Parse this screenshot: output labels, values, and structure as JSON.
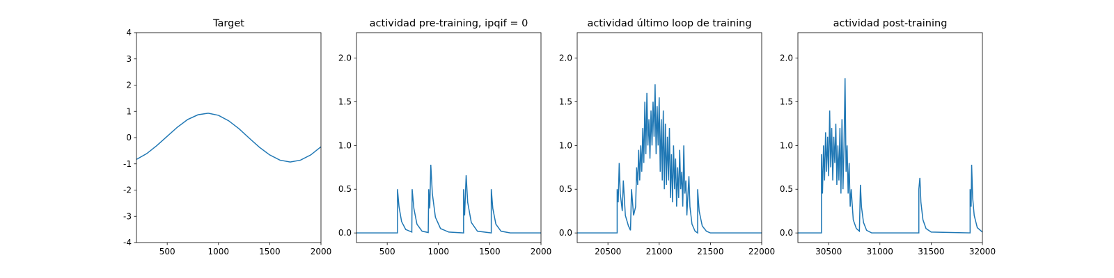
{
  "chart_data": [
    {
      "type": "line",
      "title": "Target",
      "color": "#1f77b4",
      "x": [
        200,
        300,
        400,
        500,
        600,
        700,
        800,
        900,
        1000,
        1100,
        1200,
        1300,
        1400,
        1500,
        1600,
        1700,
        1800,
        1900,
        2000
      ],
      "values": [
        -0.83,
        -0.61,
        -0.3,
        0.05,
        0.4,
        0.69,
        0.87,
        0.93,
        0.85,
        0.64,
        0.34,
        -0.02,
        -0.37,
        -0.66,
        -0.86,
        -0.93,
        -0.86,
        -0.66,
        -0.35
      ],
      "xlim": [
        200,
        2000
      ],
      "xticks": [
        500,
        1000,
        1500,
        2000
      ],
      "ylim": [
        -4,
        4
      ],
      "yticks": [
        -4,
        -3,
        -2,
        -1,
        0,
        1,
        2,
        3,
        4
      ]
    },
    {
      "type": "line",
      "title": "actividad pre-training, ipqif = 0",
      "color": "#1f77b4",
      "x": [
        200,
        600,
        600,
        615,
        640,
        680,
        740,
        743,
        760,
        790,
        840,
        900,
        905,
        915,
        925,
        940,
        970,
        1020,
        1100,
        1245,
        1245,
        1255,
        1270,
        1285,
        1320,
        1380,
        1515,
        1515,
        1530,
        1560,
        1610,
        1700,
        2000
      ],
      "values": [
        0,
        0,
        0.5,
        0.3,
        0.13,
        0.04,
        0.01,
        0.5,
        0.28,
        0.1,
        0.02,
        0.005,
        0.5,
        0.28,
        0.78,
        0.45,
        0.18,
        0.05,
        0.01,
        0,
        0.5,
        0.2,
        0.66,
        0.35,
        0.12,
        0.02,
        0,
        0.5,
        0.28,
        0.1,
        0.02,
        0,
        0
      ],
      "xlim": [
        200,
        2000
      ],
      "xticks": [
        500,
        1000,
        1500,
        2000
      ],
      "ylim": [
        -0.11,
        2.29
      ],
      "yticks": [
        {
          "value": 0,
          "label": "0.0"
        },
        {
          "value": 0.5,
          "label": "0.5"
        },
        {
          "value": 1,
          "label": "1.0"
        },
        {
          "value": 1.5,
          "label": "1.5"
        },
        {
          "value": 2,
          "label": "2.0"
        }
      ]
    },
    {
      "type": "line",
      "title": "actividad último loop de training",
      "color": "#1f77b4",
      "x": [
        20200,
        20590,
        20590,
        20600,
        20610,
        20620,
        20640,
        20650,
        20670,
        20700,
        20720,
        20730,
        20750,
        20770,
        20780,
        20790,
        20800,
        20810,
        20820,
        20830,
        20840,
        20850,
        20860,
        20870,
        20880,
        20890,
        20900,
        20910,
        20920,
        20930,
        20940,
        20950,
        20960,
        20970,
        20980,
        20990,
        21000,
        21010,
        21020,
        21030,
        21040,
        21050,
        21060,
        21070,
        21080,
        21090,
        21100,
        21110,
        21120,
        21130,
        21140,
        21150,
        21160,
        21170,
        21180,
        21190,
        21200,
        21210,
        21220,
        21230,
        21240,
        21250,
        21260,
        21270,
        21290,
        21300,
        21320,
        21350,
        21375,
        21375,
        21390,
        21420,
        21460,
        21500,
        22000
      ],
      "values": [
        0,
        0,
        0.5,
        0.35,
        0.8,
        0.45,
        0.25,
        0.6,
        0.2,
        0.08,
        0.03,
        0.5,
        0.2,
        0.3,
        0.75,
        0.55,
        0.95,
        0.6,
        1.0,
        0.7,
        1.2,
        0.8,
        1.5,
        0.9,
        1.6,
        1.0,
        1.3,
        0.85,
        1.4,
        1.0,
        1.5,
        1.1,
        1.7,
        0.9,
        1.45,
        1.0,
        1.55,
        0.7,
        1.3,
        0.6,
        1.4,
        0.5,
        1.25,
        0.55,
        1.1,
        0.6,
        1.2,
        0.4,
        0.9,
        0.35,
        1.0,
        0.5,
        0.85,
        0.3,
        0.75,
        0.4,
        0.95,
        0.5,
        0.7,
        0.3,
        1.0,
        0.45,
        0.6,
        0.2,
        0.65,
        0.3,
        0.1,
        0.02,
        0,
        0.5,
        0.25,
        0.08,
        0.02,
        0,
        0
      ],
      "xlim": [
        20200,
        22000
      ],
      "xticks": [
        20500,
        21000,
        21500,
        22000
      ],
      "ylim": [
        -0.11,
        2.29
      ],
      "yticks": [
        {
          "value": 0,
          "label": "0.0"
        },
        {
          "value": 0.5,
          "label": "0.5"
        },
        {
          "value": 1,
          "label": "1.0"
        },
        {
          "value": 1.5,
          "label": "1.5"
        },
        {
          "value": 2,
          "label": "2.0"
        }
      ]
    },
    {
      "type": "line",
      "title": "actividad post-training",
      "color": "#1f77b4",
      "x": [
        30200,
        30430,
        30430,
        30440,
        30450,
        30460,
        30470,
        30480,
        30490,
        30500,
        30510,
        30520,
        30530,
        30540,
        30550,
        30560,
        30570,
        30580,
        30590,
        30600,
        30610,
        30620,
        30630,
        30640,
        30650,
        30660,
        30670,
        30680,
        30690,
        30700,
        30710,
        30720,
        30740,
        30770,
        30800,
        30810,
        30820,
        30840,
        30870,
        30920,
        31380,
        31380,
        31390,
        31400,
        31420,
        31450,
        31500,
        31880,
        31880,
        31890,
        31895,
        31905,
        31920,
        31950,
        32000
      ],
      "values": [
        0,
        0,
        0.9,
        0.45,
        1.0,
        0.6,
        1.15,
        0.7,
        1.1,
        0.65,
        1.4,
        0.75,
        1.2,
        0.6,
        1.1,
        0.8,
        1.25,
        0.55,
        1.0,
        0.6,
        1.2,
        0.45,
        1.3,
        0.5,
        1.0,
        1.77,
        0.7,
        1.0,
        0.45,
        0.8,
        0.3,
        0.5,
        0.15,
        0.05,
        0.02,
        0.55,
        0.3,
        0.12,
        0.03,
        0,
        0,
        0.5,
        0.63,
        0.35,
        0.15,
        0.05,
        0.01,
        0,
        0.5,
        0.3,
        0.78,
        0.4,
        0.2,
        0.06,
        0.01
      ],
      "xlim": [
        30200,
        32000
      ],
      "xticks": [
        30500,
        31000,
        31500,
        32000
      ],
      "ylim": [
        -0.11,
        2.29
      ],
      "yticks": [
        {
          "value": 0,
          "label": "0.0"
        },
        {
          "value": 0.5,
          "label": "0.5"
        },
        {
          "value": 1,
          "label": "1.0"
        },
        {
          "value": 1.5,
          "label": "1.5"
        },
        {
          "value": 2,
          "label": "2.0"
        }
      ]
    }
  ]
}
